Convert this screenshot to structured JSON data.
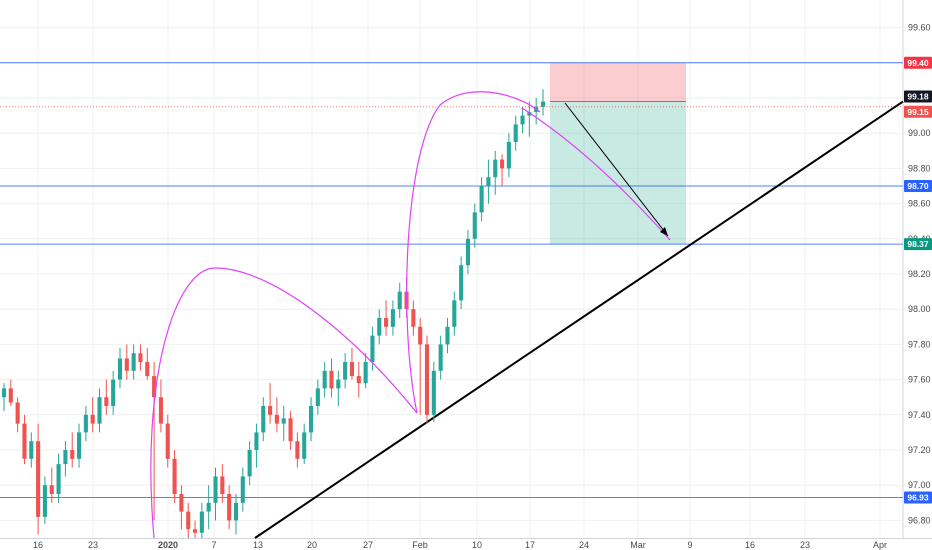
{
  "chart_data": {
    "type": "candlestick",
    "title": "",
    "xlabel": "",
    "ylabel": "",
    "ylim": [
      96.7,
      99.7
    ],
    "grid": true,
    "x_ticks": [
      "16",
      "23",
      "2020",
      "7",
      "13",
      "20",
      "27",
      "Feb",
      "10",
      "17",
      "24",
      "Mar",
      "9",
      "16",
      "23",
      "Apr"
    ],
    "y_ticks": [
      "96.80",
      "97.00",
      "97.20",
      "97.40",
      "97.60",
      "97.80",
      "98.00",
      "98.20",
      "98.40",
      "98.60",
      "98.80",
      "99.00",
      "99.20",
      "99.40",
      "99.60"
    ],
    "horizontal_levels": [
      {
        "label": "99.40",
        "value": 99.4,
        "color": "#f23645"
      },
      {
        "label": "99.18",
        "value": 99.18,
        "color": "#131722"
      },
      {
        "label": "99.15",
        "value": 99.15,
        "color": "#ef5350"
      },
      {
        "label": "98.70",
        "value": 98.7,
        "color": "#2962ff"
      },
      {
        "label": "98.37",
        "value": 98.37,
        "color": "#089981"
      },
      {
        "label": "96.93",
        "value": 96.93,
        "color": "#2962ff"
      }
    ],
    "position": {
      "type": "short",
      "entry": 99.18,
      "stop": 99.4,
      "target": 98.37
    },
    "trendline": {
      "from": [
        97.0,
        96.7
      ],
      "to": [
        99.0,
        99.18
      ]
    },
    "series": [
      {
        "values": [
          [
            97.5,
            97.58,
            97.42,
            97.55
          ],
          [
            97.55,
            97.6,
            97.45,
            97.47
          ],
          [
            97.47,
            97.5,
            97.3,
            97.35
          ],
          [
            97.35,
            97.4,
            97.12,
            97.15
          ],
          [
            97.15,
            97.3,
            97.1,
            97.25
          ],
          [
            97.25,
            97.35,
            96.72,
            96.82
          ],
          [
            96.82,
            97.05,
            96.78,
            97.0
          ],
          [
            97.0,
            97.1,
            96.9,
            96.95
          ],
          [
            96.95,
            97.18,
            96.9,
            97.12
          ],
          [
            97.12,
            97.25,
            97.05,
            97.2
          ],
          [
            97.2,
            97.3,
            97.1,
            97.15
          ],
          [
            97.15,
            97.35,
            97.1,
            97.3
          ],
          [
            97.3,
            97.45,
            97.25,
            97.4
          ],
          [
            97.4,
            97.5,
            97.3,
            97.35
          ],
          [
            97.35,
            97.55,
            97.3,
            97.5
          ],
          [
            97.5,
            97.6,
            97.4,
            97.45
          ],
          [
            97.45,
            97.65,
            97.4,
            97.6
          ],
          [
            97.6,
            97.78,
            97.55,
            97.72
          ],
          [
            97.72,
            97.8,
            97.6,
            97.65
          ],
          [
            97.65,
            97.8,
            97.6,
            97.75
          ],
          [
            97.75,
            97.8,
            97.65,
            97.7
          ],
          [
            97.7,
            97.78,
            97.6,
            97.62
          ],
          [
            97.62,
            97.7,
            96.8,
            97.5
          ],
          [
            97.5,
            97.6,
            97.3,
            97.35
          ],
          [
            97.35,
            97.4,
            97.1,
            97.15
          ],
          [
            97.15,
            97.2,
            96.9,
            96.95
          ],
          [
            96.95,
            97.0,
            96.75,
            96.85
          ],
          [
            96.85,
            96.9,
            96.7,
            96.75
          ],
          [
            96.75,
            96.8,
            96.7,
            96.73
          ],
          [
            96.73,
            96.9,
            96.7,
            96.85
          ],
          [
            96.85,
            97.0,
            96.75,
            96.9
          ],
          [
            96.9,
            97.1,
            96.8,
            97.05
          ],
          [
            97.05,
            97.12,
            96.9,
            96.95
          ],
          [
            96.95,
            97.0,
            96.75,
            96.8
          ],
          [
            96.8,
            96.95,
            96.72,
            96.9
          ],
          [
            96.9,
            97.1,
            96.85,
            97.05
          ],
          [
            97.05,
            97.25,
            97.0,
            97.2
          ],
          [
            97.2,
            97.35,
            97.1,
            97.3
          ],
          [
            97.3,
            97.5,
            97.25,
            97.45
          ],
          [
            97.45,
            97.58,
            97.35,
            97.4
          ],
          [
            97.4,
            97.5,
            97.3,
            97.35
          ],
          [
            97.35,
            97.45,
            97.25,
            97.38
          ],
          [
            97.38,
            97.42,
            97.2,
            97.25
          ],
          [
            97.25,
            97.3,
            97.1,
            97.15
          ],
          [
            97.15,
            97.35,
            97.12,
            97.3
          ],
          [
            97.3,
            97.5,
            97.25,
            97.45
          ],
          [
            97.45,
            97.6,
            97.4,
            97.55
          ],
          [
            97.55,
            97.7,
            97.5,
            97.65
          ],
          [
            97.65,
            97.72,
            97.5,
            97.55
          ],
          [
            97.55,
            97.65,
            97.45,
            97.6
          ],
          [
            97.6,
            97.75,
            97.55,
            97.7
          ],
          [
            97.7,
            97.78,
            97.6,
            97.62
          ],
          [
            97.62,
            97.7,
            97.5,
            97.58
          ],
          [
            97.58,
            97.75,
            97.55,
            97.7
          ],
          [
            97.7,
            97.9,
            97.65,
            97.85
          ],
          [
            97.85,
            98.0,
            97.8,
            97.95
          ],
          [
            97.95,
            98.05,
            97.85,
            97.9
          ],
          [
            97.9,
            98.05,
            97.85,
            98.0
          ],
          [
            98.0,
            98.15,
            97.95,
            98.1
          ],
          [
            98.1,
            98.18,
            97.95,
            98.0
          ],
          [
            98.0,
            98.05,
            97.85,
            97.9
          ],
          [
            97.9,
            97.95,
            97.4,
            97.8
          ],
          [
            97.8,
            97.85,
            97.35,
            97.4
          ],
          [
            97.4,
            97.7,
            97.36,
            97.65
          ],
          [
            97.65,
            97.85,
            97.6,
            97.8
          ],
          [
            97.8,
            97.95,
            97.75,
            97.9
          ],
          [
            97.9,
            98.1,
            97.85,
            98.05
          ],
          [
            98.05,
            98.3,
            98.0,
            98.25
          ],
          [
            98.25,
            98.45,
            98.2,
            98.4
          ],
          [
            98.4,
            98.6,
            98.35,
            98.55
          ],
          [
            98.55,
            98.75,
            98.5,
            98.7
          ],
          [
            98.7,
            98.85,
            98.6,
            98.75
          ],
          [
            98.75,
            98.9,
            98.65,
            98.85
          ],
          [
            98.85,
            98.88,
            98.7,
            98.8
          ],
          [
            98.8,
            99.0,
            98.75,
            98.95
          ],
          [
            98.95,
            99.1,
            98.9,
            99.05
          ],
          [
            99.05,
            99.15,
            99.0,
            99.1
          ],
          [
            99.1,
            99.18,
            98.98,
            99.12
          ],
          [
            99.12,
            99.2,
            99.05,
            99.15
          ],
          [
            99.15,
            99.25,
            99.1,
            99.18
          ]
        ]
      }
    ],
    "annotations": [
      "magenta projection arcs",
      "short position risk/reward box",
      "projection arrow"
    ]
  }
}
